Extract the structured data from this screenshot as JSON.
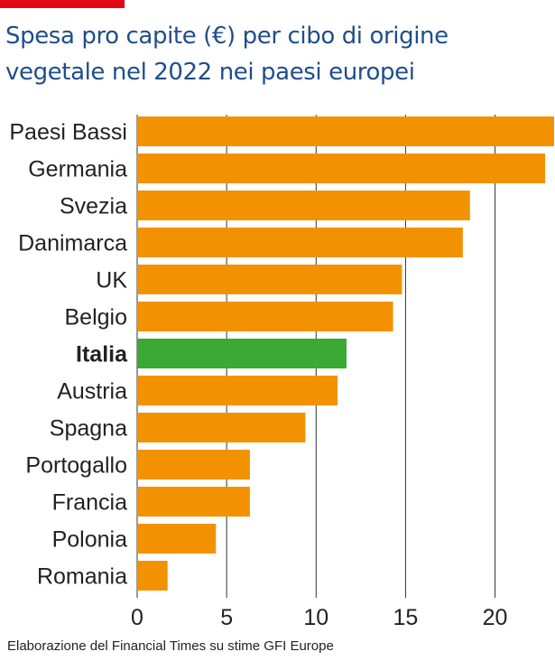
{
  "chart_data": {
    "type": "bar",
    "orientation": "horizontal",
    "title_lines": [
      "Spesa pro capite (€) per cibo di origine",
      "vegetale nel 2022 nei paesi europei"
    ],
    "xlabel": "",
    "ylabel": "",
    "categories": [
      "Paesi Bassi",
      "Germania",
      "Svezia",
      "Danimarca",
      "UK",
      "Belgio",
      "Italia",
      "Austria",
      "Spagna",
      "Portogallo",
      "Francia",
      "Polonia",
      "Romania"
    ],
    "values": [
      23.3,
      22.8,
      18.6,
      18.2,
      14.8,
      14.3,
      11.7,
      11.2,
      9.4,
      6.3,
      6.3,
      4.4,
      1.7
    ],
    "highlight": "Italia",
    "xlim": [
      0,
      23.3
    ],
    "xticks": [
      0,
      5,
      10,
      15,
      20
    ],
    "grid": true,
    "colors": {
      "bar": "#f39200",
      "highlight": "#3aaa35",
      "grid": "#333333"
    }
  },
  "source": "Elaborazione del Financial Times su stime GFI Europe"
}
